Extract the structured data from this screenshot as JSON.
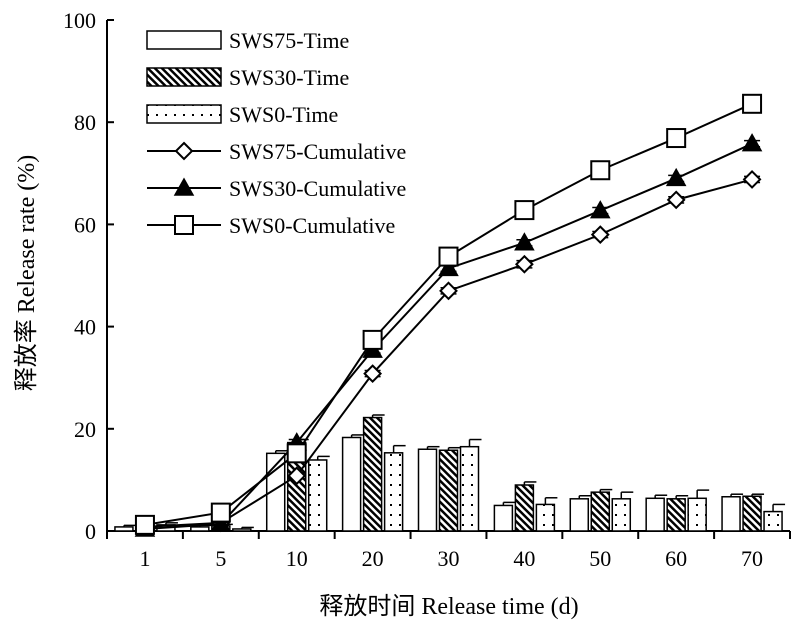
{
  "chart_data": {
    "type": "bar",
    "xlabel": "释放时间 Release time (d)",
    "ylabel": "释放率 Release rate (%)",
    "ylim": [
      0,
      100
    ],
    "yticks": [
      0,
      20,
      40,
      60,
      80,
      100
    ],
    "categories": [
      "1",
      "5",
      "10",
      "20",
      "30",
      "40",
      "50",
      "60",
      "70"
    ],
    "legend_position": "top-left",
    "grid": false,
    "bar_series": [
      {
        "name": "SWS75-Time",
        "pattern": "white",
        "values": [
          0.8,
          0.8,
          15.2,
          18.3,
          16.0,
          5.0,
          6.3,
          6.4,
          6.7
        ],
        "errors": [
          0.3,
          0.3,
          0.5,
          0.5,
          0.5,
          0.6,
          0.6,
          0.6,
          0.5
        ]
      },
      {
        "name": "SWS30-Time",
        "pattern": "diagonal",
        "values": [
          0.4,
          1.0,
          17.3,
          22.2,
          15.8,
          9.0,
          7.6,
          6.3,
          6.8
        ],
        "errors": [
          0.3,
          0.3,
          0.6,
          0.5,
          0.5,
          0.6,
          0.5,
          0.6,
          0.4
        ]
      },
      {
        "name": "SWS0-Time",
        "pattern": "dotted",
        "values": [
          1.2,
          0.4,
          13.9,
          15.3,
          16.5,
          5.2,
          6.3,
          6.4,
          3.8
        ],
        "errors": [
          0.4,
          0.3,
          0.7,
          1.4,
          1.4,
          1.3,
          1.3,
          1.6,
          1.4
        ]
      }
    ],
    "line_series": [
      {
        "name": "SWS75-Cumulative",
        "marker": "diamond",
        "values": [
          0.8,
          1.6,
          10.8,
          30.8,
          47.0,
          52.2,
          58.0,
          64.8,
          68.8
        ],
        "errors": [
          0.3,
          0.3,
          0.6,
          0.6,
          0.6,
          0.7,
          0.6,
          0.6,
          0.6
        ]
      },
      {
        "name": "SWS30-Cumulative",
        "marker": "triangle",
        "values": [
          0.4,
          1.4,
          17.3,
          35.4,
          51.4,
          56.4,
          62.7,
          69.0,
          75.8
        ],
        "errors": [
          0.3,
          0.3,
          0.6,
          0.6,
          0.6,
          0.6,
          0.6,
          0.6,
          0.6
        ]
      },
      {
        "name": "SWS0-Cumulative",
        "marker": "square",
        "values": [
          1.2,
          3.6,
          15.2,
          37.4,
          53.7,
          62.8,
          70.6,
          76.9,
          83.6
        ],
        "errors": [
          0.3,
          0.3,
          0.7,
          0.6,
          0.6,
          0.6,
          0.6,
          0.6,
          0.6
        ]
      }
    ]
  }
}
